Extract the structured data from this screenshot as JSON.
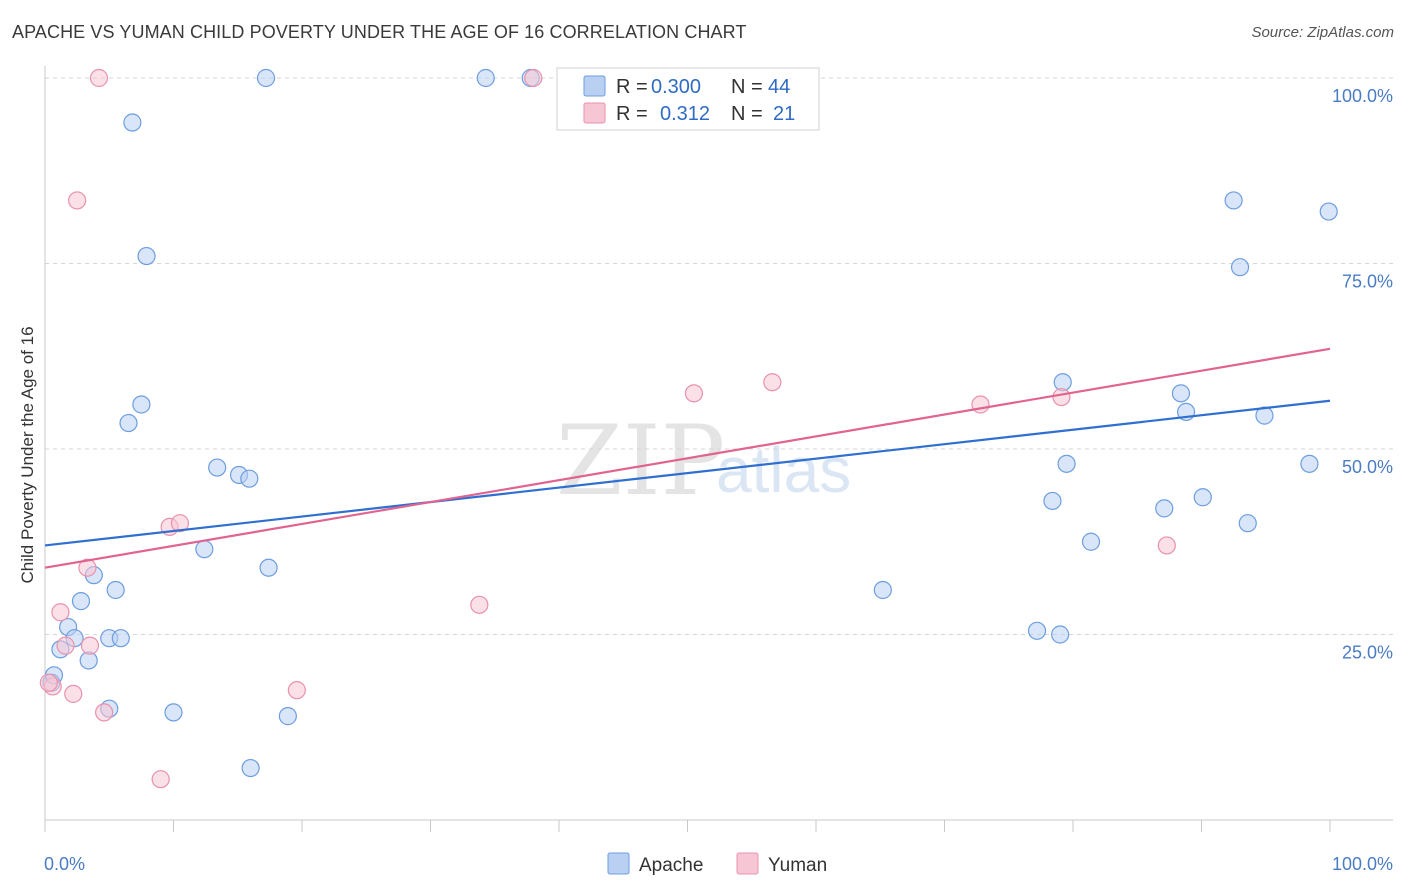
{
  "header": {
    "title": "APACHE VS YUMAN CHILD POVERTY UNDER THE AGE OF 16 CORRELATION CHART",
    "source": "Source: ZipAtlas.com"
  },
  "watermark": {
    "zip": "ZIP",
    "atlas": "atlas"
  },
  "legend": {
    "apache": {
      "r_label": "R =",
      "r_value": "0.300",
      "n_label": "N =",
      "n_value": "44"
    },
    "yuman": {
      "r_label": "R =",
      "r_value": "0.312",
      "n_label": "N =",
      "n_value": "21"
    }
  },
  "colors": {
    "apache_fill": "#b9d0f2",
    "apache_stroke": "#6d9ee0",
    "apache_line": "#2f6fd0",
    "yuman_fill": "#f7c6d4",
    "yuman_stroke": "#e892ad",
    "yuman_line": "#e0648f",
    "grid": "#d6d6d6",
    "tick_text": "#4a7cc4"
  },
  "chart_data": {
    "type": "scatter",
    "title": "APACHE VS YUMAN CHILD POVERTY UNDER THE AGE OF 16 CORRELATION CHART",
    "xlabel": "",
    "ylabel": "Child Poverty Under the Age of 16",
    "xlim": [
      0,
      100
    ],
    "ylim": [
      0,
      100
    ],
    "x_tick_labels": [
      "0.0%",
      "100.0%"
    ],
    "y_ticks": [
      25,
      50,
      75,
      100
    ],
    "y_tick_labels": [
      "25.0%",
      "50.0%",
      "75.0%",
      "100.0%"
    ],
    "grid": true,
    "legend_position": "top-center",
    "series": [
      {
        "name": "Apache",
        "r": 0.3,
        "n": 44,
        "trend": {
          "x0": 0,
          "y0": 37,
          "x1": 100,
          "y1": 56.5
        },
        "points": [
          [
            0.5,
            18.5
          ],
          [
            0.7,
            19.5
          ],
          [
            1.2,
            23
          ],
          [
            1.8,
            26
          ],
          [
            2.3,
            24.5
          ],
          [
            2.8,
            29.5
          ],
          [
            3.4,
            21.5
          ],
          [
            3.8,
            33
          ],
          [
            5.0,
            15
          ],
          [
            5.0,
            24.5
          ],
          [
            5.5,
            31
          ],
          [
            5.9,
            24.5
          ],
          [
            6.5,
            53.5
          ],
          [
            6.8,
            94
          ],
          [
            7.5,
            56
          ],
          [
            7.9,
            76
          ],
          [
            10.0,
            14.5
          ],
          [
            12.4,
            36.5
          ],
          [
            13.4,
            47.5
          ],
          [
            15.1,
            46.5
          ],
          [
            15.9,
            46
          ],
          [
            16.0,
            7
          ],
          [
            17.2,
            100
          ],
          [
            17.4,
            34
          ],
          [
            18.9,
            14
          ],
          [
            34.3,
            100
          ],
          [
            37.8,
            100
          ],
          [
            65.2,
            31
          ],
          [
            77.2,
            25.5
          ],
          [
            78.4,
            43
          ],
          [
            79.0,
            25
          ],
          [
            79.2,
            59
          ],
          [
            79.5,
            48
          ],
          [
            81.4,
            37.5
          ],
          [
            87.1,
            42
          ],
          [
            88.4,
            57.5
          ],
          [
            88.8,
            55
          ],
          [
            90.1,
            43.5
          ],
          [
            92.5,
            83.5
          ],
          [
            93.0,
            74.5
          ],
          [
            93.6,
            40
          ],
          [
            94.9,
            54.5
          ],
          [
            98.4,
            48
          ],
          [
            99.9,
            82
          ]
        ]
      },
      {
        "name": "Yuman",
        "r": 0.312,
        "n": 21,
        "trend": {
          "x0": 0,
          "y0": 34,
          "x1": 100,
          "y1": 63.5
        },
        "points": [
          [
            0.6,
            18
          ],
          [
            1.2,
            28
          ],
          [
            1.6,
            23.5
          ],
          [
            2.2,
            17
          ],
          [
            2.5,
            83.5
          ],
          [
            3.3,
            34
          ],
          [
            3.5,
            23.5
          ],
          [
            4.2,
            100
          ],
          [
            4.6,
            14.5
          ],
          [
            9.7,
            39.5
          ],
          [
            10.5,
            40
          ],
          [
            19.6,
            17.5
          ],
          [
            33.8,
            29
          ],
          [
            38.0,
            100
          ],
          [
            50.5,
            57.5
          ],
          [
            56.6,
            59
          ],
          [
            72.8,
            56
          ],
          [
            79.1,
            57
          ],
          [
            87.3,
            37
          ],
          [
            9.0,
            5.5
          ],
          [
            0.3,
            18.5
          ]
        ]
      }
    ]
  },
  "bottom_legend": {
    "apache": "Apache",
    "yuman": "Yuman"
  }
}
